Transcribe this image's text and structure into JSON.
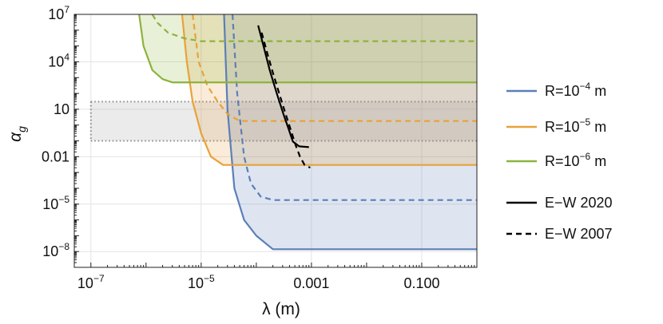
{
  "chart_data": {
    "type": "line",
    "title": "",
    "xlabel": "λ (m)",
    "ylabel": "α_g",
    "xscale": "log",
    "yscale": "log",
    "xlim": [
      5e-08,
      1.0
    ],
    "ylim": [
      1e-09,
      10000000.0
    ],
    "grid": true,
    "legend_position": "right",
    "x_tick_labels": [
      {
        "value": 1e-07,
        "base": "10",
        "exp": "−7"
      },
      {
        "value": 1e-05,
        "base": "10",
        "exp": "−5"
      },
      {
        "value": 0.001,
        "base": "0.001",
        "exp": ""
      },
      {
        "value": 0.1,
        "base": "0.100",
        "exp": ""
      }
    ],
    "y_tick_labels": [
      {
        "value": 1e-08,
        "base": "10",
        "exp": "−8"
      },
      {
        "value": 1e-05,
        "base": "10",
        "exp": "−5"
      },
      {
        "value": 0.01,
        "base": "0.01",
        "exp": ""
      },
      {
        "value": 10,
        "base": "10",
        "exp": ""
      },
      {
        "value": 10000.0,
        "base": "10",
        "exp": "4"
      },
      {
        "value": 10000000.0,
        "base": "10",
        "exp": "7"
      }
    ],
    "gray_band": {
      "ymin": 0.1,
      "ymax": 30,
      "xmin": 1e-07,
      "xmax": 1.0,
      "color": "#bdbdbd"
    },
    "excluded_regions": [
      {
        "curve": "R=10^-4 m",
        "color": "#5b7fb8",
        "x": [
          2.6e-05,
          3e-05,
          4e-05,
          6e-05,
          0.0001,
          0.0002,
          1.0
        ],
        "y": [
          10000000.0,
          10.0,
          0.0001,
          1e-06,
          1e-07,
          1.4e-08,
          1.4e-08
        ]
      },
      {
        "curve": "R=10^-5 m",
        "color": "#e8a23a",
        "x": [
          4.5e-06,
          5.5e-06,
          7e-06,
          1e-05,
          1.5e-05,
          2.5e-05,
          1.0
        ],
        "y": [
          10000000.0,
          10000.0,
          30.0,
          0.3,
          0.01,
          0.003,
          0.003
        ]
      },
      {
        "curve": "R=10^-6 m",
        "color": "#8db33c",
        "x": [
          7.5e-07,
          9e-07,
          1.3e-06,
          2e-06,
          3e-06,
          1.0
        ],
        "y": [
          10000000.0,
          100000.0,
          3000.0,
          800.0,
          500.0,
          500.0
        ]
      }
    ],
    "series": [
      {
        "name": "R=10⁻⁴ m",
        "label_base": "R=10",
        "label_exp": "−4",
        "label_unit": " m",
        "color": "#5b7fb8",
        "style": "solid",
        "x": [
          2.6e-05,
          3e-05,
          4e-05,
          6e-05,
          0.0001,
          0.0002,
          1.0
        ],
        "y": [
          10000000.0,
          10.0,
          0.0001,
          1e-06,
          1e-07,
          1.4e-08,
          1.4e-08
        ]
      },
      {
        "name": "R=10⁻⁴ m (E−W 2007)",
        "color": "#5b7fb8",
        "style": "dashed",
        "x": [
          3.7e-05,
          4.5e-05,
          6e-05,
          8e-05,
          0.00012,
          0.0002,
          1.0
        ],
        "y": [
          10000000.0,
          100.0,
          0.01,
          0.0002,
          3e-05,
          1.8e-05,
          1.8e-05
        ]
      },
      {
        "name": "R=10⁻⁵ m",
        "label_base": "R=10",
        "label_exp": "−5",
        "label_unit": " m",
        "color": "#e8a23a",
        "style": "solid",
        "x": [
          4.5e-06,
          5.5e-06,
          7e-06,
          1e-05,
          1.5e-05,
          2.5e-05,
          1.0
        ],
        "y": [
          10000000.0,
          10000.0,
          30.0,
          0.3,
          0.01,
          0.003,
          0.003
        ]
      },
      {
        "name": "R=10⁻⁵ m (E−W 2007)",
        "color": "#e8a23a",
        "style": "dashed",
        "x": [
          7e-06,
          9e-06,
          1.3e-05,
          2e-05,
          3e-05,
          5e-05,
          1.0
        ],
        "y": [
          10000000.0,
          10000.0,
          300.0,
          30.0,
          5,
          1.8,
          1.8
        ]
      },
      {
        "name": "R=10⁻⁶ m",
        "label_base": "R=10",
        "label_exp": "−6",
        "label_unit": " m",
        "color": "#8db33c",
        "style": "solid",
        "x": [
          7.5e-07,
          9e-07,
          1.3e-06,
          2e-06,
          3e-06,
          1.0
        ],
        "y": [
          10000000.0,
          100000.0,
          3000.0,
          800.0,
          500.0,
          500.0
        ]
      },
      {
        "name": "R=10⁻⁶ m (E−W 2007)",
        "color": "#8db33c",
        "style": "dashed",
        "x": [
          1.3e-06,
          1.6e-06,
          2.5e-06,
          5e-06,
          1e-05,
          1.0
        ],
        "y": [
          10000000.0,
          3000000.0,
          700000.0,
          300000.0,
          200000.0,
          200000.0
        ]
      },
      {
        "name": "E−W 2020",
        "color": "#000000",
        "style": "solid",
        "x": [
          0.000108,
          0.000135,
          0.000175,
          0.000235,
          0.00031,
          0.00039,
          0.00046,
          0.0006,
          0.0009
        ],
        "y": [
          2000000.0,
          100000.0,
          3000.0,
          100.0,
          5,
          0.5,
          0.09,
          0.045,
          0.04
        ]
      },
      {
        "name": "E−W 2007",
        "color": "#000000",
        "style": "dashed",
        "x": [
          0.000125,
          0.00016,
          0.0002,
          0.00026,
          0.00034,
          0.00043,
          0.00052,
          0.00062,
          0.00075,
          0.00095
        ],
        "y": [
          700000.0,
          30000.0,
          2000.0,
          100.0,
          5,
          0.4,
          0.05,
          0.01,
          0.003,
          0.002
        ]
      }
    ],
    "legend": [
      {
        "key": "R4",
        "base": "R=10",
        "exp": "−4",
        "unit": " m",
        "color": "#5b7fb8",
        "style": "solid"
      },
      {
        "key": "R5",
        "base": "R=10",
        "exp": "−5",
        "unit": " m",
        "color": "#e8a23a",
        "style": "solid"
      },
      {
        "key": "R6",
        "base": "R=10",
        "exp": "−6",
        "unit": " m",
        "color": "#8db33c",
        "style": "solid"
      },
      {
        "key": "EW2020",
        "base": "E−W 2020",
        "exp": "",
        "unit": "",
        "color": "#000000",
        "style": "solid"
      },
      {
        "key": "EW2007",
        "base": "E−W 2007",
        "exp": "",
        "unit": "",
        "color": "#000000",
        "style": "dashed"
      }
    ]
  }
}
